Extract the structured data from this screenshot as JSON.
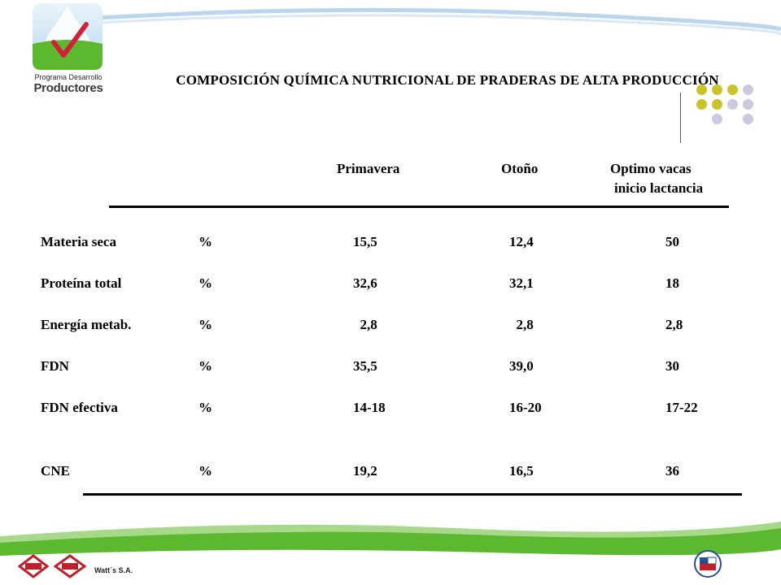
{
  "header": {
    "logo_line1": "Programa Desarrollo",
    "logo_line2": "Productores",
    "title": "COMPOSICIÓN  QUÍMICA NUTRICIONAL DE PRADERAS DE ALTA PRODUCCIÓN"
  },
  "table": {
    "columns": {
      "primavera": "Primavera",
      "otono": "Otoño",
      "optimo_line1": "Optimo vacas",
      "optimo_line2": "inicio lactancia"
    },
    "rows": [
      {
        "label": "Materia seca",
        "unit": "%",
        "primavera": "15,5",
        "otono": "12,4",
        "optimo": "50"
      },
      {
        "label": "Proteína total",
        "unit": "%",
        "primavera": "32,6",
        "otono": "32,1",
        "optimo": "18"
      },
      {
        "label": "Energía metab.",
        "unit": "%",
        "primavera": "  2,8",
        "otono": "  2,8",
        "optimo": "2,8"
      },
      {
        "label": "FDN",
        "unit": "%",
        "primavera": "35,5",
        "otono": "39,0",
        "optimo": "30"
      },
      {
        "label": "FDN efectiva",
        "unit": "%",
        "primavera": "14-18",
        "otono": "16-20",
        "optimo": "17-22"
      },
      {
        "label": "CNE",
        "unit": "%",
        "primavera": "19,2",
        "otono": "16,5",
        "optimo": "36"
      }
    ]
  },
  "footer": {
    "watts_label": "Watt´s S.A."
  },
  "colors": {
    "green": "#5cb82e",
    "olive_dot": "#c8c42a",
    "lilac_dot": "#c9c9e0",
    "swoosh_blue": "#a9cbe8"
  }
}
